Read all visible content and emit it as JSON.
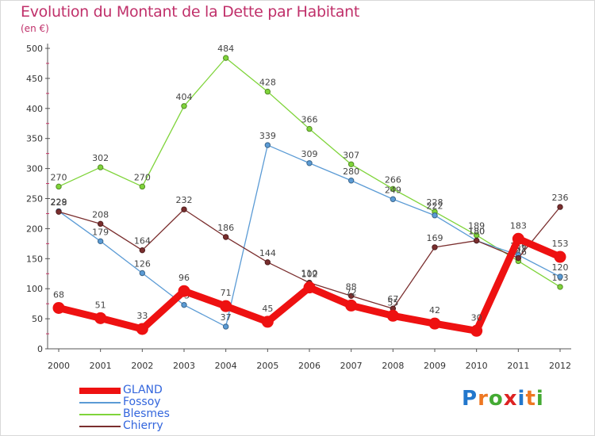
{
  "header": {
    "title": "Evolution du Montant de la Dette par Habitant",
    "subtitle": "(en €)"
  },
  "logo": {
    "text": "Proxiti",
    "colors": [
      "#2277cc",
      "#ee7722",
      "#44aa33",
      "#dd2222",
      "#2277cc",
      "#ee7722",
      "#44aa33"
    ]
  },
  "chart_data": {
    "type": "line",
    "title": "Evolution du Montant de la Dette par Habitant",
    "subtitle": "(en €)",
    "x": [
      "2000",
      "2001",
      "2002",
      "2003",
      "2004",
      "2005",
      "2006",
      "2007",
      "2008",
      "2009",
      "2010",
      "2011",
      "2012"
    ],
    "ylim": [
      0,
      500
    ],
    "yticks": [
      0,
      50,
      100,
      150,
      200,
      250,
      300,
      350,
      400,
      450,
      500
    ],
    "grid": false,
    "legend": "bottom-left",
    "series": [
      {
        "name": "Blesmes",
        "color": "#7fd43a",
        "values": [
          270,
          302,
          270,
          404,
          484,
          428,
          366,
          307,
          266,
          228,
          189,
          146,
          103
        ]
      },
      {
        "name": "Fossoy",
        "color": "#5b9bd5",
        "values": [
          229,
          179,
          126,
          73,
          37,
          339,
          309,
          280,
          249,
          222,
          180,
          156,
          120
        ]
      },
      {
        "name": "Chierry",
        "color": "#7a2e2e",
        "values": [
          228,
          208,
          164,
          232,
          186,
          144,
          110,
          88,
          67,
          169,
          180,
          151,
          236
        ]
      },
      {
        "name": "GLAND",
        "color": "#ee1111",
        "values": [
          68,
          51,
          33,
          96,
          71,
          45,
          102,
          72,
          55,
          42,
          30,
          183,
          153
        ]
      }
    ]
  },
  "legend_order": [
    "GLAND",
    "Fossoy",
    "Blesmes",
    "Chierry"
  ]
}
